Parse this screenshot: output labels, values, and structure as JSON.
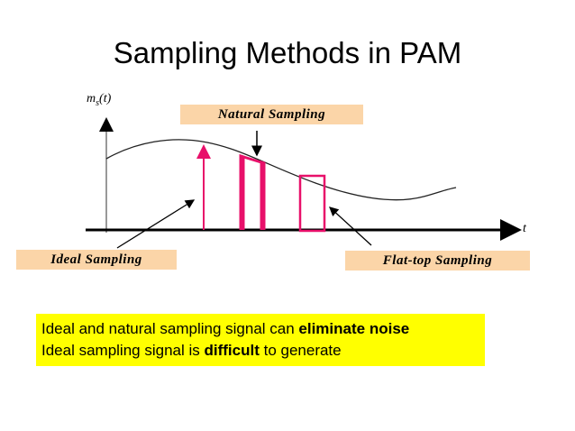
{
  "title": "Sampling Methods in PAM",
  "diagram": {
    "y_axis_label": "m",
    "y_axis_subscript": "s",
    "y_axis_arg": "(t)",
    "x_axis_label": "t",
    "labels": {
      "natural": "Natural Sampling",
      "ideal": "Ideal Sampling",
      "flat_top": "Flat-top Sampling"
    }
  },
  "note": {
    "lines": [
      [
        {
          "text": "Ideal and natural sampling signal can ",
          "bold": false
        },
        {
          "text": "eliminate noise",
          "bold": true
        }
      ],
      [
        {
          "text": "Ideal sampling signal is ",
          "bold": false
        },
        {
          "text": "difficult",
          "bold": true
        },
        {
          "text": " to generate",
          "bold": false
        }
      ]
    ]
  }
}
